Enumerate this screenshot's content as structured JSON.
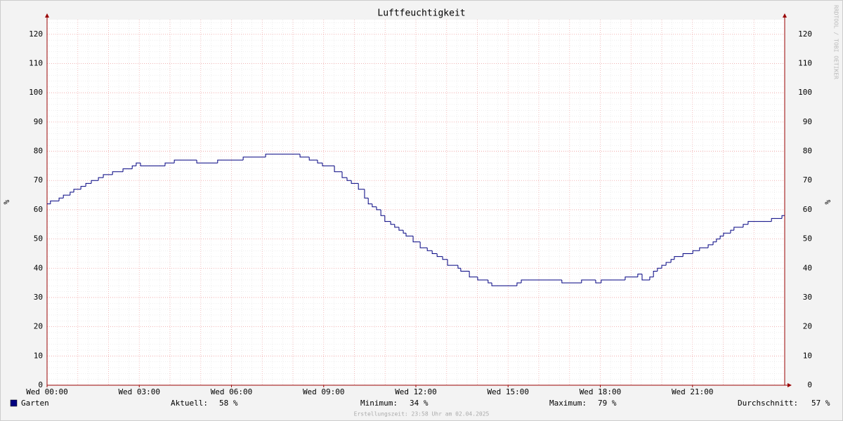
{
  "chart_data": {
    "type": "line",
    "title": "Luftfeuchtigkeit",
    "y_label": "%",
    "watermark": "RRDTOOL / TOBI OETIKER",
    "footer": "Erstellungszeit: 23:58 Uhr am 02.04.2025",
    "xlim": [
      0,
      24
    ],
    "xticks": [
      {
        "value": 0,
        "label": "Wed 00:00"
      },
      {
        "value": 3,
        "label": "Wed 03:00"
      },
      {
        "value": 6,
        "label": "Wed 06:00"
      },
      {
        "value": 9,
        "label": "Wed 09:00"
      },
      {
        "value": 12,
        "label": "Wed 12:00"
      },
      {
        "value": 15,
        "label": "Wed 15:00"
      },
      {
        "value": 18,
        "label": "Wed 18:00"
      },
      {
        "value": 21,
        "label": "Wed 21:00"
      }
    ],
    "ylim": [
      0,
      125
    ],
    "yticks": [
      0,
      10,
      20,
      30,
      40,
      50,
      60,
      70,
      80,
      90,
      100,
      110,
      120
    ],
    "grid": true,
    "x": [
      0,
      0.11,
      0.39,
      0.53,
      0.75,
      0.87,
      1.1,
      1.26,
      1.44,
      1.67,
      1.83,
      2.13,
      2.47,
      2.77,
      2.9,
      3.04,
      3.84,
      4.14,
      4.87,
      5.55,
      6.38,
      7.11,
      8.23,
      8.53,
      8.8,
      8.96,
      9.35,
      9.6,
      9.76,
      9.9,
      10.13,
      10.33,
      10.45,
      10.58,
      10.72,
      10.86,
      10.99,
      11.18,
      11.31,
      11.45,
      11.59,
      11.68,
      11.91,
      12.14,
      12.37,
      12.53,
      12.69,
      12.87,
      13.03,
      13.37,
      13.46,
      13.74,
      14.01,
      14.35,
      14.47,
      15.29,
      15.43,
      16.75,
      17.39,
      17.85,
      18.03,
      18.81,
      19.22,
      19.36,
      19.61,
      19.73,
      19.86,
      20,
      20.14,
      20.3,
      20.41,
      20.69,
      21.01,
      21.23,
      21.51,
      21.67,
      21.78,
      21.9,
      22.01,
      22.24,
      22.35,
      22.65,
      22.81,
      23.57,
      23.91
    ],
    "series": [
      {
        "name": "Garten",
        "color": "#000080",
        "values": [
          62,
          63,
          64,
          65,
          66,
          67,
          68,
          69,
          70,
          71,
          72,
          73,
          74,
          75,
          76,
          75,
          76,
          77,
          76,
          77,
          78,
          79,
          78,
          77,
          76,
          75,
          73,
          71,
          70,
          69,
          67,
          64,
          62,
          61,
          60,
          58,
          56,
          55,
          54,
          53,
          52,
          51,
          49,
          47,
          46,
          45,
          44,
          43,
          41,
          40,
          39,
          37,
          36,
          35,
          34,
          35,
          36,
          35,
          36,
          35,
          36,
          37,
          38,
          36,
          37,
          39,
          40,
          41,
          42,
          43,
          44,
          45,
          46,
          47,
          48,
          49,
          50,
          51,
          52,
          53,
          54,
          55,
          56,
          57,
          58
        ]
      }
    ],
    "stats": [
      {
        "label": "Aktuell:",
        "value": "58 %"
      },
      {
        "label": "Minimum:",
        "value": "34 %"
      },
      {
        "label": "Maximum:",
        "value": "79 %"
      },
      {
        "label": "Durchschnitt:",
        "value": "57 %"
      }
    ]
  }
}
